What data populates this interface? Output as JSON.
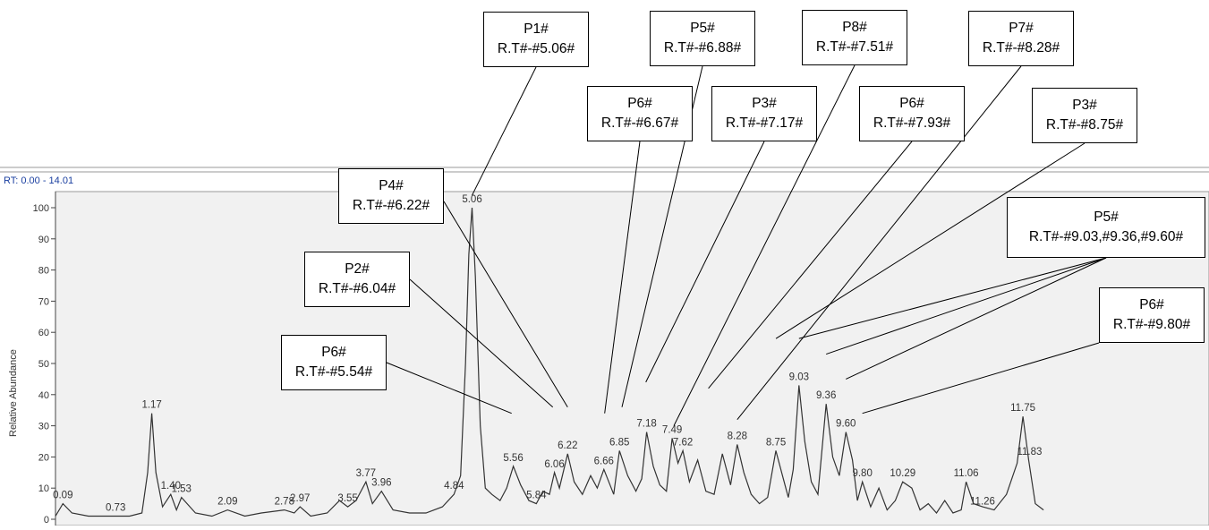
{
  "header": {
    "rt_range": "RT: 0.00 - 14.01"
  },
  "chart_data": {
    "type": "line",
    "xlim": [
      0.0,
      14.01
    ],
    "ylim": [
      0,
      100
    ],
    "ylabel": "Relative Abundance",
    "yticks": [
      0,
      10,
      20,
      30,
      40,
      50,
      60,
      70,
      80,
      90,
      100
    ],
    "series": [
      {
        "x": [
          0.0,
          0.09,
          0.2,
          0.4,
          0.6,
          0.73,
          0.9,
          1.05,
          1.12,
          1.17,
          1.22,
          1.3,
          1.4,
          1.47,
          1.53,
          1.7,
          1.9,
          2.09,
          2.3,
          2.5,
          2.78,
          2.9,
          2.97,
          3.1,
          3.3,
          3.45,
          3.55,
          3.65,
          3.77,
          3.85,
          3.96,
          4.1,
          4.3,
          4.5,
          4.7,
          4.84,
          4.92,
          4.98,
          5.02,
          5.06,
          5.1,
          5.16,
          5.22,
          5.3,
          5.4,
          5.48,
          5.56,
          5.65,
          5.75,
          5.84,
          5.92,
          6.0,
          6.06,
          6.12,
          6.22,
          6.3,
          6.4,
          6.5,
          6.58,
          6.66,
          6.72,
          6.78,
          6.85,
          6.95,
          7.05,
          7.12,
          7.18,
          7.26,
          7.34,
          7.42,
          7.49,
          7.56,
          7.62,
          7.7,
          7.8,
          7.9,
          8.0,
          8.1,
          8.2,
          8.28,
          8.36,
          8.45,
          8.55,
          8.65,
          8.75,
          8.83,
          8.9,
          8.96,
          9.03,
          9.1,
          9.18,
          9.26,
          9.36,
          9.44,
          9.52,
          9.6,
          9.68,
          9.74,
          9.8,
          9.9,
          10.0,
          10.1,
          10.2,
          10.29,
          10.4,
          10.5,
          10.6,
          10.7,
          10.8,
          10.9,
          11.0,
          11.06,
          11.15,
          11.26,
          11.4,
          11.55,
          11.68,
          11.75,
          11.82,
          11.9,
          12.0
        ],
        "y": [
          1,
          5,
          2,
          1,
          1,
          1,
          1,
          2,
          15,
          34,
          15,
          4,
          8,
          3,
          7,
          2,
          1,
          3,
          1,
          2,
          3,
          2,
          4,
          1,
          2,
          6,
          4,
          6,
          12,
          5,
          9,
          3,
          2,
          2,
          4,
          8,
          14,
          50,
          85,
          100,
          78,
          30,
          10,
          8,
          6,
          10,
          17,
          11,
          6,
          5,
          9,
          8,
          15,
          10,
          21,
          12,
          8,
          14,
          10,
          16,
          12,
          8,
          22,
          14,
          9,
          13,
          28,
          17,
          11,
          9,
          26,
          18,
          22,
          12,
          19,
          9,
          8,
          21,
          11,
          24,
          15,
          8,
          5,
          7,
          22,
          14,
          7,
          16,
          43,
          25,
          12,
          8,
          37,
          20,
          14,
          28,
          19,
          6,
          12,
          4,
          10,
          3,
          6,
          12,
          10,
          3,
          5,
          2,
          6,
          2,
          3,
          12,
          5,
          4,
          3,
          8,
          18,
          33,
          19,
          5,
          3
        ]
      }
    ],
    "peak_labels": [
      {
        "x": 0.09,
        "y": 5,
        "text": "0.09"
      },
      {
        "x": 0.73,
        "y": 1,
        "text": "0.73"
      },
      {
        "x": 1.17,
        "y": 34,
        "text": "1.17"
      },
      {
        "x": 1.4,
        "y": 8,
        "text": "1.40"
      },
      {
        "x": 1.53,
        "y": 7,
        "text": "1.53"
      },
      {
        "x": 2.09,
        "y": 3,
        "text": "2.09"
      },
      {
        "x": 2.78,
        "y": 3,
        "text": "2.78"
      },
      {
        "x": 2.97,
        "y": 4,
        "text": "2.97"
      },
      {
        "x": 3.55,
        "y": 4,
        "text": "3.55"
      },
      {
        "x": 3.77,
        "y": 12,
        "text": "3.77"
      },
      {
        "x": 3.96,
        "y": 9,
        "text": "3.96"
      },
      {
        "x": 4.84,
        "y": 8,
        "text": "4.84"
      },
      {
        "x": 5.06,
        "y": 100,
        "text": "5.06"
      },
      {
        "x": 5.56,
        "y": 17,
        "text": "5.56"
      },
      {
        "x": 5.84,
        "y": 5,
        "text": "5.84"
      },
      {
        "x": 6.06,
        "y": 15,
        "text": "6.06"
      },
      {
        "x": 6.22,
        "y": 21,
        "text": "6.22"
      },
      {
        "x": 6.66,
        "y": 16,
        "text": "6.66"
      },
      {
        "x": 6.85,
        "y": 22,
        "text": "6.85"
      },
      {
        "x": 7.18,
        "y": 28,
        "text": "7.18"
      },
      {
        "x": 7.49,
        "y": 26,
        "text": "7.49"
      },
      {
        "x": 7.62,
        "y": 22,
        "text": "7.62"
      },
      {
        "x": 8.28,
        "y": 24,
        "text": "8.28"
      },
      {
        "x": 8.75,
        "y": 22,
        "text": "8.75"
      },
      {
        "x": 9.03,
        "y": 43,
        "text": "9.03"
      },
      {
        "x": 9.36,
        "y": 37,
        "text": "9.36"
      },
      {
        "x": 9.6,
        "y": 28,
        "text": "9.60"
      },
      {
        "x": 9.8,
        "y": 12,
        "text": "9.80"
      },
      {
        "x": 10.29,
        "y": 12,
        "text": "10.29"
      },
      {
        "x": 11.06,
        "y": 12,
        "text": "11.06"
      },
      {
        "x": 11.26,
        "y": 3,
        "text": "11.26"
      },
      {
        "x": 11.75,
        "y": 33,
        "text": "11.75"
      },
      {
        "x": 11.83,
        "y": 19,
        "text": "11.83"
      }
    ]
  },
  "callouts": [
    {
      "name": "P1#",
      "rt": "R.T#-#5.06#",
      "points": [
        [
          5.06,
          104
        ]
      ]
    },
    {
      "name": "P5#",
      "rt": "R.T#-#6.88#",
      "points": [
        [
          6.88,
          36
        ]
      ]
    },
    {
      "name": "P8#",
      "rt": "R.T#-#7.51#",
      "points": [
        [
          7.51,
          30
        ]
      ]
    },
    {
      "name": "P7#",
      "rt": "R.T#-#8.28#",
      "points": [
        [
          8.28,
          32
        ]
      ]
    },
    {
      "name": "P6#",
      "rt": "R.T#-#6.67#",
      "points": [
        [
          6.67,
          34
        ]
      ]
    },
    {
      "name": "P3#",
      "rt": "R.T#-#7.17#",
      "points": [
        [
          7.17,
          44
        ]
      ]
    },
    {
      "name": "P6#",
      "rt": "R.T#-#7.93#",
      "points": [
        [
          7.93,
          42
        ]
      ]
    },
    {
      "name": "P3#",
      "rt": "R.T#-#8.75#",
      "points": [
        [
          8.75,
          58
        ]
      ]
    },
    {
      "name": "P4#",
      "rt": "R.T#-#6.22#",
      "points": [
        [
          6.22,
          36
        ]
      ]
    },
    {
      "name": "P5#",
      "rt": "R.T#-#9.03,#9.36,#9.60#",
      "points": [
        [
          9.03,
          58
        ],
        [
          9.36,
          53
        ],
        [
          9.6,
          45
        ]
      ]
    },
    {
      "name": "P2#",
      "rt": "R.T#-#6.04#",
      "points": [
        [
          6.04,
          36
        ]
      ]
    },
    {
      "name": "P6#",
      "rt": "R.T#-#9.80#",
      "points": [
        [
          9.8,
          34
        ]
      ]
    },
    {
      "name": "P6#",
      "rt": "R.T#-#5.54#",
      "points": [
        [
          5.54,
          34
        ]
      ]
    }
  ]
}
